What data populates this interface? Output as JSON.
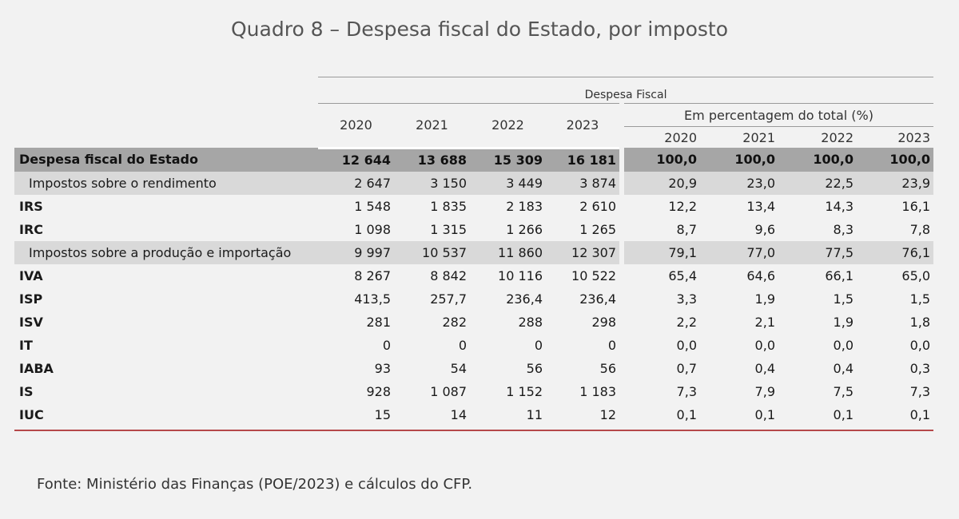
{
  "title": "Quadro 8 – Despesa fiscal do Estado, por imposto",
  "header": {
    "group_label": "Despesa Fiscal",
    "years": [
      "2020",
      "2021",
      "2022",
      "2023"
    ],
    "pct_label": "Em percentagem do total (%)",
    "pct_years": [
      "2020",
      "2021",
      "2022",
      "2023"
    ]
  },
  "rows": [
    {
      "label": "Despesa fiscal do Estado",
      "values": [
        "12 644",
        "13 688",
        "15 309",
        "16 181"
      ],
      "pct": [
        "100,0",
        "100,0",
        "100,0",
        "100,0"
      ]
    },
    {
      "label": "Impostos sobre o rendimento",
      "values": [
        "2 647",
        "3 150",
        "3 449",
        "3 874"
      ],
      "pct": [
        "20,9",
        "23,0",
        "22,5",
        "23,9"
      ]
    },
    {
      "label": "IRS",
      "values": [
        "1 548",
        "1 835",
        "2 183",
        "2 610"
      ],
      "pct": [
        "12,2",
        "13,4",
        "14,3",
        "16,1"
      ]
    },
    {
      "label": "IRC",
      "values": [
        "1 098",
        "1 315",
        "1 266",
        "1 265"
      ],
      "pct": [
        "8,7",
        "9,6",
        "8,3",
        "7,8"
      ]
    },
    {
      "label": "Impostos sobre a produção e importação",
      "values": [
        "9 997",
        "10 537",
        "11 860",
        "12 307"
      ],
      "pct": [
        "79,1",
        "77,0",
        "77,5",
        "76,1"
      ]
    },
    {
      "label": "IVA",
      "values": [
        "8 267",
        "8 842",
        "10 116",
        "10 522"
      ],
      "pct": [
        "65,4",
        "64,6",
        "66,1",
        "65,0"
      ]
    },
    {
      "label": "ISP",
      "values": [
        "413,5",
        "257,7",
        "236,4",
        "236,4"
      ],
      "pct": [
        "3,3",
        "1,9",
        "1,5",
        "1,5"
      ]
    },
    {
      "label": "ISV",
      "values": [
        "281",
        "282",
        "288",
        "298"
      ],
      "pct": [
        "2,2",
        "2,1",
        "1,9",
        "1,8"
      ]
    },
    {
      "label": "IT",
      "values": [
        "0",
        "0",
        "0",
        "0"
      ],
      "pct": [
        "0,0",
        "0,0",
        "0,0",
        "0,0"
      ]
    },
    {
      "label": "IABA",
      "values": [
        "93",
        "54",
        "56",
        "56"
      ],
      "pct": [
        "0,7",
        "0,4",
        "0,4",
        "0,3"
      ]
    },
    {
      "label": "IS",
      "values": [
        "928",
        "1 087",
        "1 152",
        "1 183"
      ],
      "pct": [
        "7,3",
        "7,9",
        "7,5",
        "7,3"
      ]
    },
    {
      "label": "IUC",
      "values": [
        "15",
        "14",
        "11",
        "12"
      ],
      "pct": [
        "0,1",
        "0,1",
        "0,1",
        "0,1"
      ]
    }
  ],
  "source": "Fonte: Ministério das Finanças (POE/2023) e cálculos do CFP.",
  "colors": {
    "total_row_bg": "#a6a6a6",
    "subtotal_row_bg": "#d9d9d9",
    "bottom_rule": "#b5484a",
    "title_text": "#555555"
  }
}
